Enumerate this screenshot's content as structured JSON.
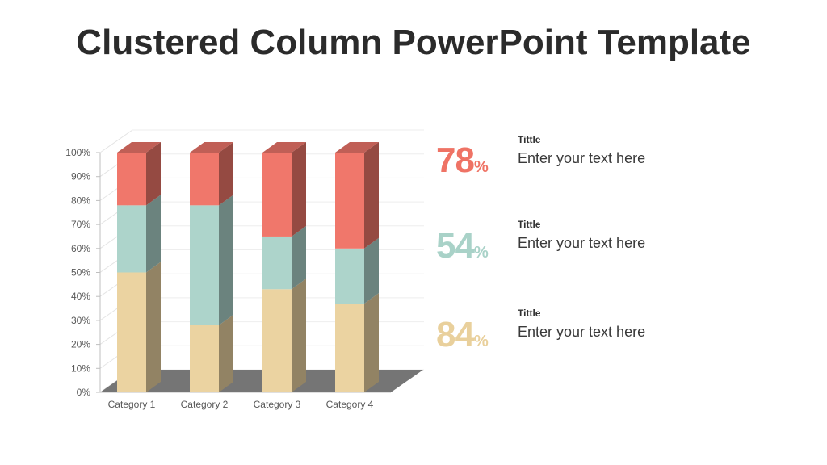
{
  "slide": {
    "title": "Clustered Column PowerPoint Template"
  },
  "colors": {
    "red": "#f0776b",
    "teal": "#add4cb",
    "tan": "#ebd3a1",
    "floor": "#757575"
  },
  "stats": [
    {
      "value": "78",
      "unit": "%",
      "color": "#ef7365"
    },
    {
      "value": "54",
      "unit": "%",
      "color": "#a9d2c8"
    },
    {
      "value": "84",
      "unit": "%",
      "color": "#e9d09c"
    }
  ],
  "info": [
    {
      "heading": "Tittle",
      "text": "Enter your text here"
    },
    {
      "heading": "Tittle",
      "text": "Enter your text here"
    },
    {
      "heading": "Tittle",
      "text": "Enter your text here"
    }
  ],
  "chart_data": {
    "type": "bar",
    "stacked": true,
    "three_d": true,
    "categories": [
      "Category 1",
      "Category 2",
      "Category 3",
      "Category 4"
    ],
    "series": [
      {
        "color": "#ebd3a1",
        "values": [
          50,
          28,
          43,
          37
        ]
      },
      {
        "color": "#add4cb",
        "values": [
          28,
          50,
          22,
          23
        ]
      },
      {
        "color": "#f0776b",
        "values": [
          22,
          22,
          35,
          40
        ]
      }
    ],
    "ytick_labels": [
      "0%",
      "10%",
      "20%",
      "30%",
      "40%",
      "50%",
      "60%",
      "70%",
      "80%",
      "90%",
      "100%"
    ],
    "ylim": [
      0,
      100
    ],
    "grid": true,
    "legend": "none"
  }
}
